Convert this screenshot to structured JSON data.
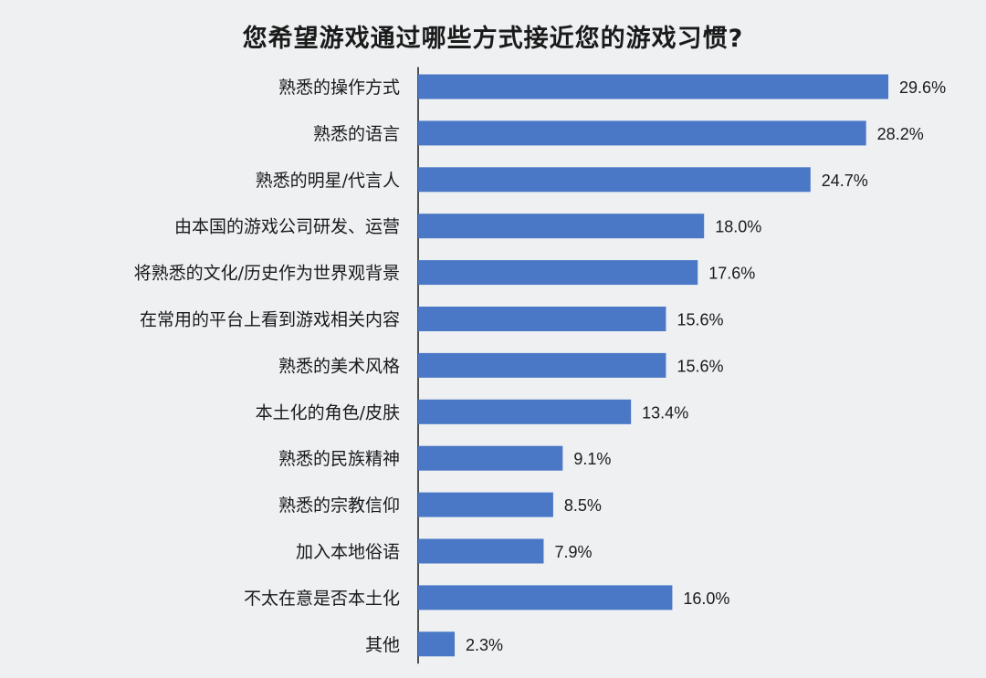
{
  "chart_data": {
    "type": "bar",
    "orientation": "horizontal",
    "title": "您希望游戏通过哪些方式接近您的游戏习惯?",
    "xlabel": "",
    "ylabel": "",
    "categories": [
      "熟悉的操作方式",
      "熟悉的语言",
      "熟悉的明星/代言人",
      "由本国的游戏公司研发、运营",
      "将熟悉的文化/历史作为世界观背景",
      "在常用的平台上看到游戏相关内容",
      "熟悉的美术风格",
      "本土化的角色/皮肤",
      "熟悉的民族精神",
      "熟悉的宗教信仰",
      "加入本地俗语",
      "不太在意是否本土化",
      "其他"
    ],
    "values": [
      29.6,
      28.2,
      24.7,
      18.0,
      17.6,
      15.6,
      15.6,
      13.4,
      9.1,
      8.5,
      7.9,
      16.0,
      2.3
    ],
    "value_labels": [
      "29.6%",
      "28.2%",
      "24.7%",
      "18.0%",
      "17.6%",
      "15.6%",
      "15.6%",
      "13.4%",
      "9.1%",
      "8.5%",
      "7.9%",
      "16.0%",
      "2.3%"
    ],
    "unit": "%",
    "grid": false,
    "legend": "none",
    "colors": {
      "bar": "#4a77c6",
      "background": "#eef0f2",
      "text": "#1a1a1a"
    }
  }
}
